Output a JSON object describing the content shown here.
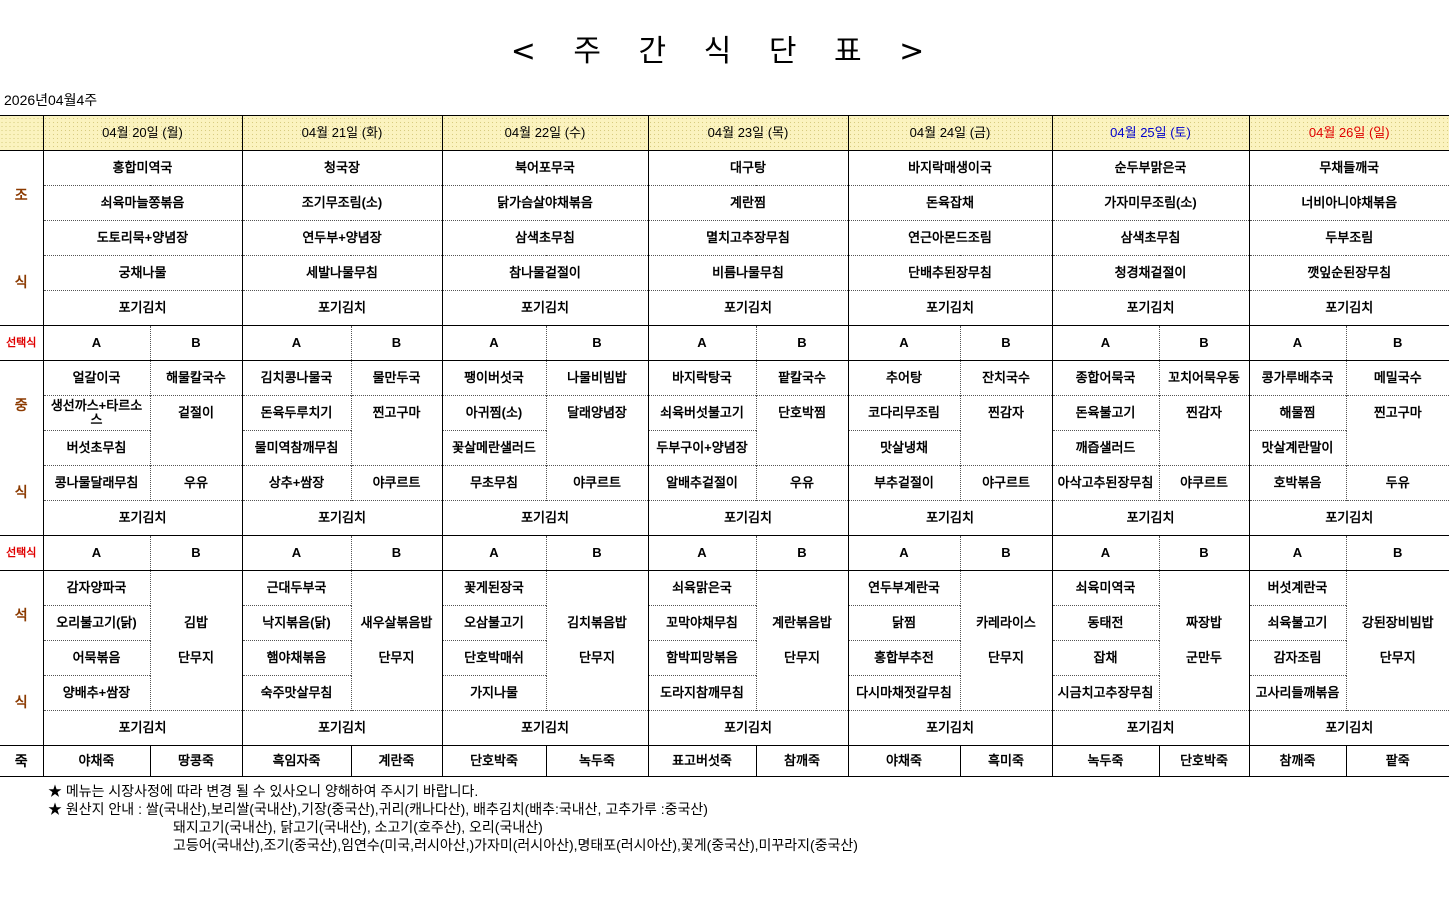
{
  "title": "< 주 간 식 단 표 >",
  "week_label": "2026년04월4주",
  "colors": {
    "saturday": "#0000cc",
    "sunday": "#e00000",
    "section_label": "#8b3a00",
    "choice_label": "#e00000",
    "header_bg": "#fbf3bf"
  },
  "labels": {
    "breakfast": [
      "조",
      "식"
    ],
    "lunch": [
      "중",
      "식"
    ],
    "dinner": [
      "석",
      "식"
    ],
    "choice": "선택식",
    "porridge": "죽",
    "option_a": "A",
    "option_b": "B"
  },
  "days": [
    {
      "date": "04월 20일 (월)",
      "breakfast": [
        "홍합미역국",
        "쇠육마늘쫑볶음",
        "도토리묵+양념장",
        "궁채나물",
        "포기김치"
      ],
      "lunch": {
        "a": [
          "얼갈이국",
          "생선까스+타르소스",
          "버섯초무침",
          "콩나물달래무침"
        ],
        "b": [
          "해물칼국수",
          "겉절이",
          "",
          "우유"
        ],
        "kimchi": "포기김치"
      },
      "dinner": {
        "a": [
          "감자양파국",
          "오리불고기(닭)",
          "어묵볶음",
          "양배추+쌈장"
        ],
        "b": [
          "",
          "김밥",
          "단무지",
          ""
        ],
        "kimchi": "포기김치"
      },
      "porridge": [
        "야채죽",
        "땅콩죽"
      ]
    },
    {
      "date": "04월 21일 (화)",
      "breakfast": [
        "청국장",
        "조기무조림(소)",
        "연두부+양념장",
        "세발나물무침",
        "포기김치"
      ],
      "lunch": {
        "a": [
          "김치콩나물국",
          "돈육두루치기",
          "물미역참깨무침",
          "상추+쌈장"
        ],
        "b": [
          "물만두국",
          "찐고구마",
          "",
          "야쿠르트"
        ],
        "kimchi": "포기김치"
      },
      "dinner": {
        "a": [
          "근대두부국",
          "낙지볶음(닭)",
          "햄야채볶음",
          "숙주맛살무침"
        ],
        "b": [
          "",
          "새우살볶음밥",
          "단무지",
          ""
        ],
        "kimchi": "포기김치"
      },
      "porridge": [
        "흑임자죽",
        "계란죽"
      ]
    },
    {
      "date": "04월 22일 (수)",
      "breakfast": [
        "북어포무국",
        "닭가슴살야채볶음",
        "삼색초무침",
        "참나물겉절이",
        "포기김치"
      ],
      "lunch": {
        "a": [
          "팽이버섯국",
          "아귀찜(소)",
          "꽃살메란샐러드",
          "무초무침"
        ],
        "b": [
          "나물비빔밥",
          "달래양념장",
          "",
          "야쿠르트"
        ],
        "kimchi": "포기김치"
      },
      "dinner": {
        "a": [
          "꽃게된장국",
          "오삼불고기",
          "단호박매쉬",
          "가지나물"
        ],
        "b": [
          "",
          "김치볶음밥",
          "단무지",
          ""
        ],
        "kimchi": "포기김치"
      },
      "porridge": [
        "단호박죽",
        "녹두죽"
      ]
    },
    {
      "date": "04월 23일 (목)",
      "breakfast": [
        "대구탕",
        "계란찜",
        "멸치고추장무침",
        "비름나물무침",
        "포기김치"
      ],
      "lunch": {
        "a": [
          "바지락탕국",
          "쇠육버섯불고기",
          "두부구이+양념장",
          "알배추겉절이"
        ],
        "b": [
          "팥칼국수",
          "단호박찜",
          "",
          "우유"
        ],
        "kimchi": "포기김치"
      },
      "dinner": {
        "a": [
          "쇠육맑은국",
          "꼬막야채무침",
          "함박피망볶음",
          "도라지참깨무침"
        ],
        "b": [
          "",
          "계란볶음밥",
          "단무지",
          ""
        ],
        "kimchi": "포기김치"
      },
      "porridge": [
        "표고버섯죽",
        "참깨죽"
      ]
    },
    {
      "date": "04월 24일 (금)",
      "breakfast": [
        "바지락매생이국",
        "돈육잡채",
        "연근아몬드조림",
        "단배추된장무침",
        "포기김치"
      ],
      "lunch": {
        "a": [
          "추어탕",
          "코다리무조림",
          "맛살냉채",
          "부추겉절이"
        ],
        "b": [
          "잔치국수",
          "찐감자",
          "",
          "야구르트"
        ],
        "kimchi": "포기김치"
      },
      "dinner": {
        "a": [
          "연두부계란국",
          "닭찜",
          "홍합부추전",
          "다시마채젓갈무침"
        ],
        "b": [
          "",
          "카레라이스",
          "단무지",
          ""
        ],
        "kimchi": "포기김치"
      },
      "porridge": [
        "야채죽",
        "흑미죽"
      ]
    },
    {
      "date": "04월 25일 (토)",
      "breakfast": [
        "순두부맑은국",
        "가자미무조림(소)",
        "삼색초무침",
        "청경채겉절이",
        "포기김치"
      ],
      "lunch": {
        "a": [
          "종합어묵국",
          "돈육불고기",
          "깨즙샐러드",
          "아삭고추된장무침"
        ],
        "b": [
          "꼬치어묵우동",
          "찐감자",
          "",
          "야쿠르트"
        ],
        "kimchi": "포기김치"
      },
      "dinner": {
        "a": [
          "쇠육미역국",
          "동태전",
          "잡채",
          "시금치고추장무침"
        ],
        "b": [
          "",
          "짜장밥",
          "군만두",
          ""
        ],
        "kimchi": "포기김치"
      },
      "porridge": [
        "녹두죽",
        "단호박죽"
      ]
    },
    {
      "date": "04월 26일 (일)",
      "breakfast": [
        "무채들깨국",
        "너비아니야채볶음",
        "두부조림",
        "깻잎순된장무침",
        "포기김치"
      ],
      "lunch": {
        "a": [
          "콩가루배추국",
          "해물찜",
          "맛살계란말이",
          "호박볶음"
        ],
        "b": [
          "메밀국수",
          "찐고구마",
          "",
          "두유"
        ],
        "kimchi": "포기김치"
      },
      "dinner": {
        "a": [
          "버섯계란국",
          "쇠육불고기",
          "감자조림",
          "고사리들깨볶음"
        ],
        "b": [
          "",
          "강된장비빔밥",
          "단무지",
          ""
        ],
        "kimchi": "포기김치"
      },
      "porridge": [
        "참깨죽",
        "팥죽"
      ]
    }
  ],
  "notes": [
    "★ 메뉴는 시장사정에 따라 변경 될 수 있사오니 양해하여 주시기 바랍니다.",
    "★ 원산지 안내 : 쌀(국내산),보리쌀(국내산),기장(중국산),귀리(캐나다산), 배추김치(배추:국내산, 고추가루 :중국산)",
    "돼지고기(국내산), 닭고기(국내산), 소고기(호주산), 오리(국내산)",
    "고등어(국내산),조기(중국산),임연수(미국,러시아산,)가자미(러시아산),명태포(러시아산),꽃게(중국산),미꾸라지(중국산)"
  ]
}
